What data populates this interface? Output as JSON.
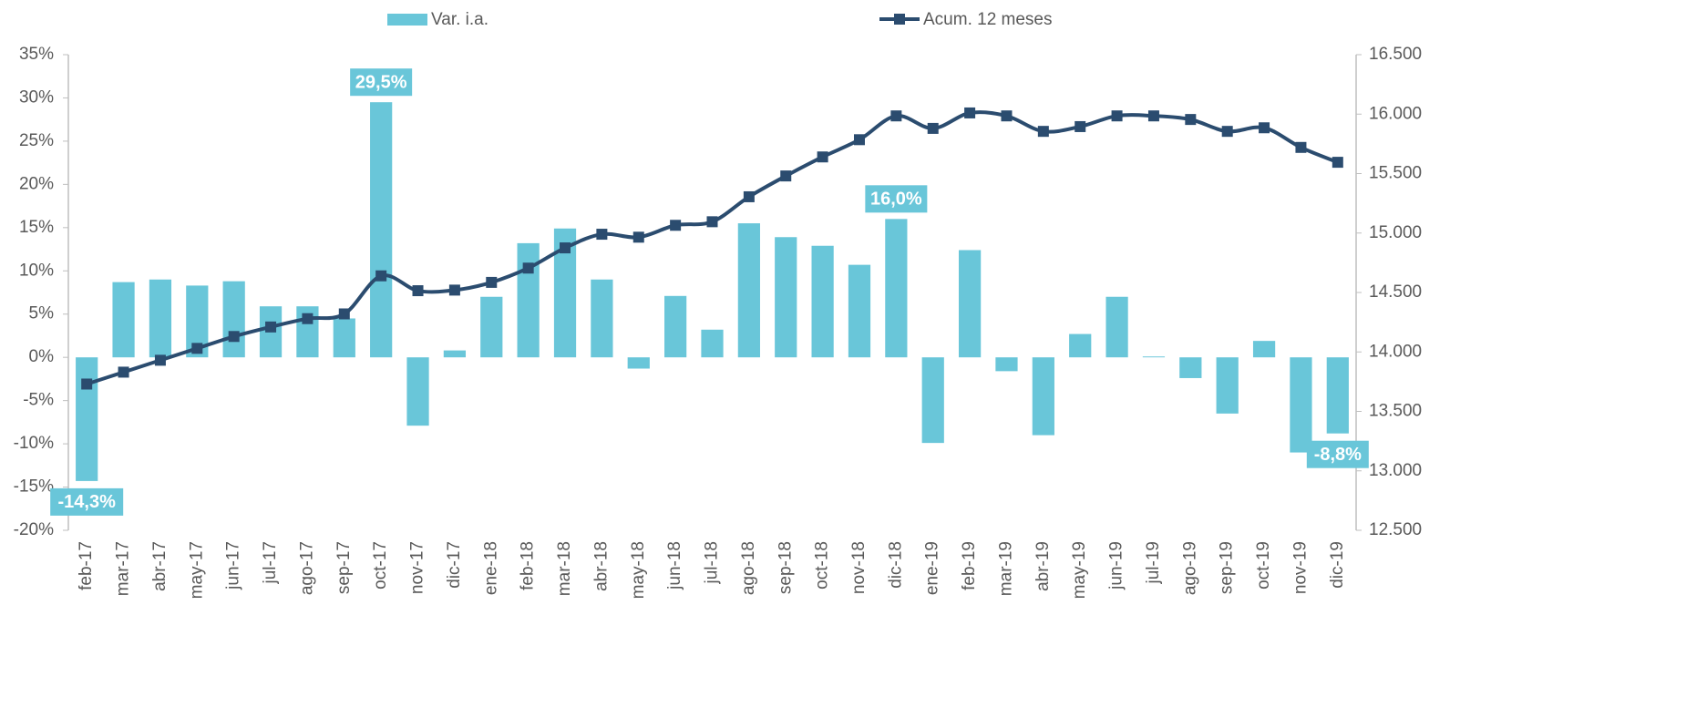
{
  "chart_data": {
    "type": "bar_line",
    "categories": [
      "feb-17",
      "mar-17",
      "abr-17",
      "may-17",
      "jun-17",
      "jul-17",
      "ago-17",
      "sep-17",
      "oct-17",
      "nov-17",
      "dic-17",
      "ene-18",
      "feb-18",
      "mar-18",
      "abr-18",
      "may-18",
      "jun-18",
      "jul-18",
      "ago-18",
      "sep-18",
      "oct-18",
      "nov-18",
      "dic-18",
      "ene-19",
      "feb-19",
      "mar-19",
      "abr-19",
      "may-19",
      "jun-19",
      "jul-19",
      "ago-19",
      "sep-19",
      "oct-19",
      "nov-19",
      "dic-19"
    ],
    "series": [
      {
        "name": "Var. i.a.",
        "type": "bar",
        "color": "#69c6d9",
        "values": [
          -14.3,
          8.7,
          9.0,
          8.3,
          8.8,
          5.9,
          5.9,
          4.5,
          29.5,
          -7.9,
          0.8,
          7.0,
          13.2,
          14.9,
          9.0,
          -1.3,
          7.1,
          3.2,
          15.5,
          13.9,
          12.9,
          10.7,
          16.0,
          -9.9,
          12.4,
          -1.6,
          -9.0,
          2.7,
          7.0,
          0.1,
          -2.4,
          -6.5,
          1.9,
          -11.0,
          -8.8
        ],
        "value_labels": [
          "-14,3%",
          null,
          null,
          null,
          null,
          null,
          null,
          null,
          "29,5%",
          null,
          null,
          null,
          null,
          null,
          null,
          null,
          null,
          null,
          null,
          null,
          null,
          null,
          "16,0%",
          null,
          null,
          null,
          null,
          null,
          null,
          null,
          null,
          null,
          null,
          null,
          "-8,8%"
        ]
      },
      {
        "name": "Acum. 12 meses",
        "type": "line",
        "axis": "y2",
        "color": "#2b4c6f",
        "values": [
          13730,
          13830,
          13930,
          14030,
          14130,
          14210,
          14280,
          14320,
          14640,
          14515,
          14520,
          14585,
          14705,
          14875,
          14990,
          14965,
          15065,
          15095,
          15305,
          15480,
          15640,
          15785,
          15985,
          15880,
          16010,
          15985,
          15855,
          15895,
          15985,
          15985,
          15955,
          15855,
          15885,
          15720,
          15595
        ]
      }
    ],
    "ylim": [
      -20,
      35
    ],
    "yticks": [
      {
        "value": -20,
        "label": "-20%"
      },
      {
        "value": -15,
        "label": "-15%"
      },
      {
        "value": -10,
        "label": "-10%"
      },
      {
        "value": -5,
        "label": "-5%"
      },
      {
        "value": 0,
        "label": "0%"
      },
      {
        "value": 5,
        "label": "5%"
      },
      {
        "value": 10,
        "label": "10%"
      },
      {
        "value": 15,
        "label": "15%"
      },
      {
        "value": 20,
        "label": "20%"
      },
      {
        "value": 25,
        "label": "25%"
      },
      {
        "value": 30,
        "label": "30%"
      },
      {
        "value": 35,
        "label": "35%"
      }
    ],
    "y2lim": [
      12500,
      16500
    ],
    "y2ticks": [
      {
        "value": 12500,
        "label": "12.500"
      },
      {
        "value": 13000,
        "label": "13.000"
      },
      {
        "value": 13500,
        "label": "13.500"
      },
      {
        "value": 14000,
        "label": "14.000"
      },
      {
        "value": 14500,
        "label": "14.500"
      },
      {
        "value": 15000,
        "label": "15.000"
      },
      {
        "value": 15500,
        "label": "15.500"
      },
      {
        "value": 16000,
        "label": "16.000"
      },
      {
        "value": 16500,
        "label": "16.500"
      }
    ],
    "legend": "top",
    "grid": false
  }
}
